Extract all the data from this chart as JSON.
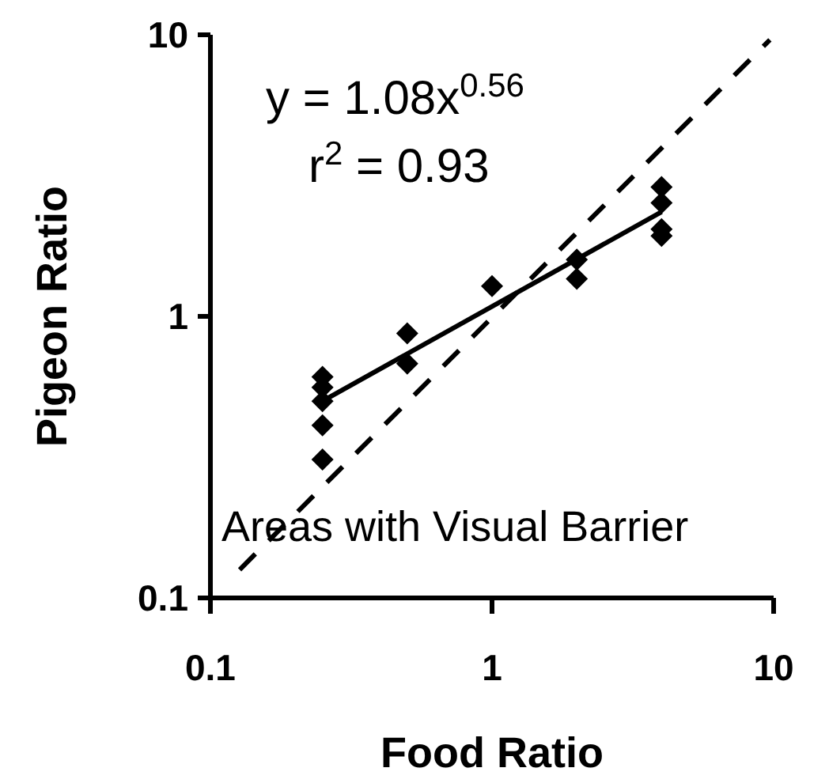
{
  "chart_data": {
    "type": "scatter",
    "xlabel": "Food Ratio",
    "ylabel": "Pigeon Ratio",
    "log": "xy",
    "xlim": [
      0.1,
      10
    ],
    "ylim": [
      0.1,
      10
    ],
    "xticks": [
      0.1,
      1,
      10
    ],
    "yticks": [
      0.1,
      1,
      10
    ],
    "grid": false,
    "annotations": [
      "y = 1.08x$^{0.56}$",
      "r$^{2}$ = 0.93",
      "Areas with Visual Barrier"
    ],
    "series": [
      {
        "color": "#000000",
        "marker": "diamond",
        "x": [
          0.25,
          0.25,
          0.25,
          0.25,
          0.25,
          0.5,
          0.5,
          1,
          2,
          2,
          4,
          4,
          4,
          4
        ],
        "values": [
          0.61,
          0.56,
          0.5,
          0.41,
          0.31,
          0.87,
          0.68,
          1.28,
          1.59,
          1.36,
          2.88,
          2.53,
          2.04,
          1.93
        ]
      },
      {
        "type": "line",
        "color": "#000000",
        "marker": "none",
        "line_style": "solid",
        "x": [
          0.25,
          4
        ],
        "values": [
          0.5,
          2.35
        ]
      },
      {
        "type": "line",
        "color": "#000000",
        "marker": "none",
        "line_style": "dashed",
        "x": [
          0.127,
          9.7
        ],
        "values": [
          0.126,
          9.6
        ]
      }
    ]
  }
}
